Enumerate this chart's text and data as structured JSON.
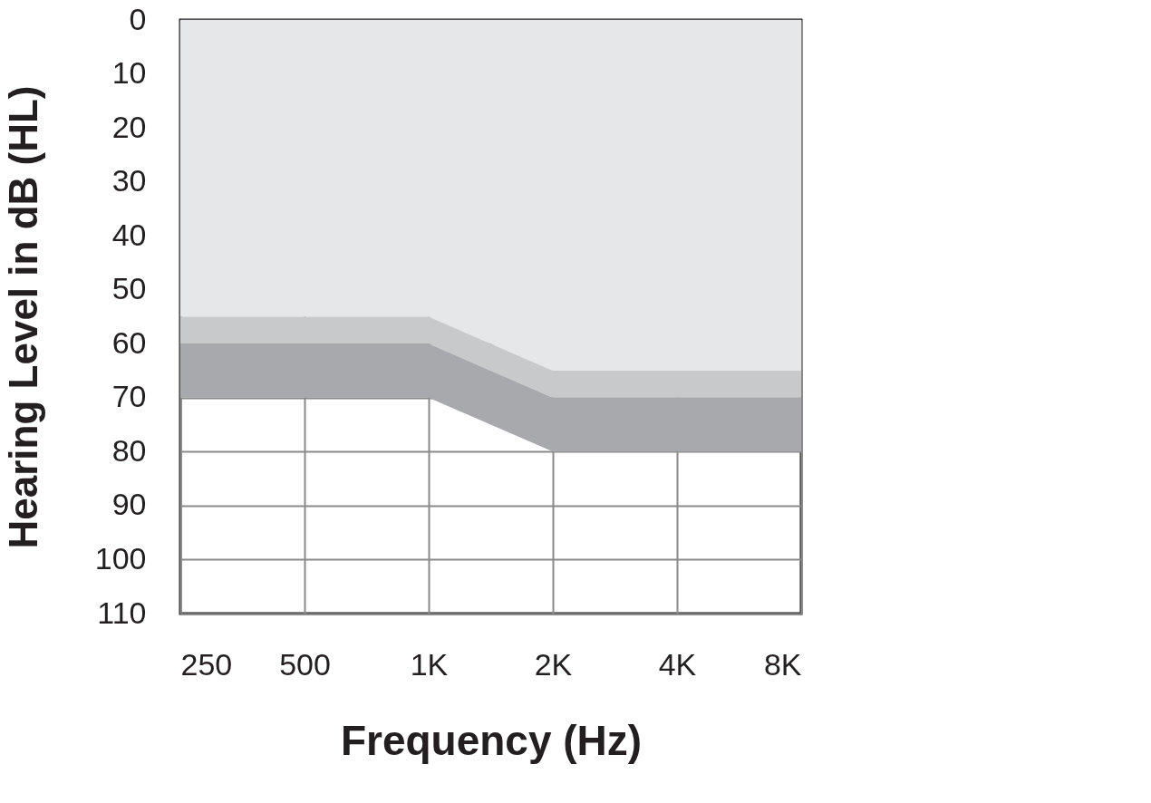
{
  "chart_data": {
    "type": "area",
    "stacked": true,
    "xlabel": "Frequency (Hz)",
    "ylabel": "Hearing Level in dB (HL)",
    "categories": [
      "250",
      "500",
      "1K",
      "2K",
      "4K",
      "8K"
    ],
    "series": [
      {
        "color": "#e6e7e8",
        "values": [
          55,
          55,
          55,
          65,
          65,
          65
        ]
      },
      {
        "color": "#c8c9cb",
        "values": [
          5,
          5,
          5,
          5,
          5,
          5
        ]
      },
      {
        "color": "#a7a9ac",
        "values": [
          10,
          10,
          10,
          10,
          10,
          10
        ]
      }
    ],
    "ylim": [
      110,
      0
    ],
    "yticks": [
      0,
      10,
      20,
      30,
      40,
      50,
      60,
      70,
      80,
      90,
      100,
      110
    ],
    "grid": true,
    "legend": false
  }
}
